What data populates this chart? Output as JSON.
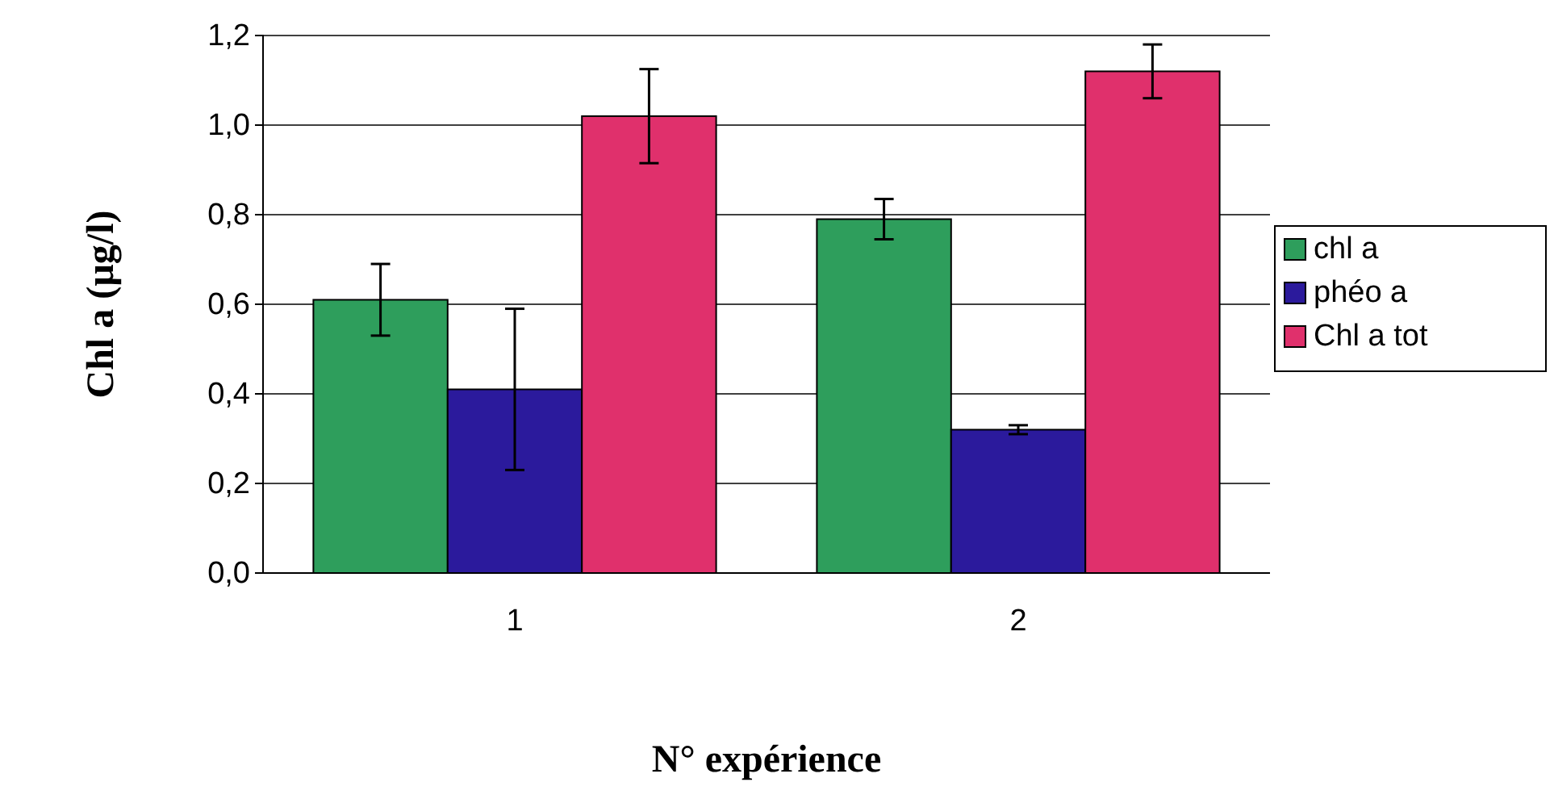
{
  "chart_data": {
    "type": "bar",
    "xlabel": "N° expérience",
    "ylabel": "Chl a (µg/l)",
    "categories": [
      "1",
      "2"
    ],
    "series": [
      {
        "name": "chl a",
        "color": "#2e9e5c",
        "values": [
          0.61,
          0.79
        ],
        "errors": [
          0.08,
          0.045
        ]
      },
      {
        "name": "phéo a",
        "color": "#2b1a9c",
        "values": [
          0.41,
          0.32
        ],
        "errors": [
          0.18,
          0.01
        ]
      },
      {
        "name": "Chl a tot",
        "color": "#e0306c",
        "values": [
          1.02,
          1.12
        ],
        "errors": [
          0.105,
          0.06
        ]
      }
    ],
    "ylim": [
      0,
      1.2
    ],
    "yticks": [
      {
        "value": 0,
        "label": "0,0"
      },
      {
        "value": 0.2,
        "label": "0,2"
      },
      {
        "value": 0.4,
        "label": "0,4"
      },
      {
        "value": 0.6,
        "label": "0,6"
      },
      {
        "value": 0.8,
        "label": "0,8"
      },
      {
        "value": 1,
        "label": "1,0"
      },
      {
        "value": 1.2,
        "label": "1,2"
      }
    ],
    "grid": "y",
    "legend": "right"
  }
}
